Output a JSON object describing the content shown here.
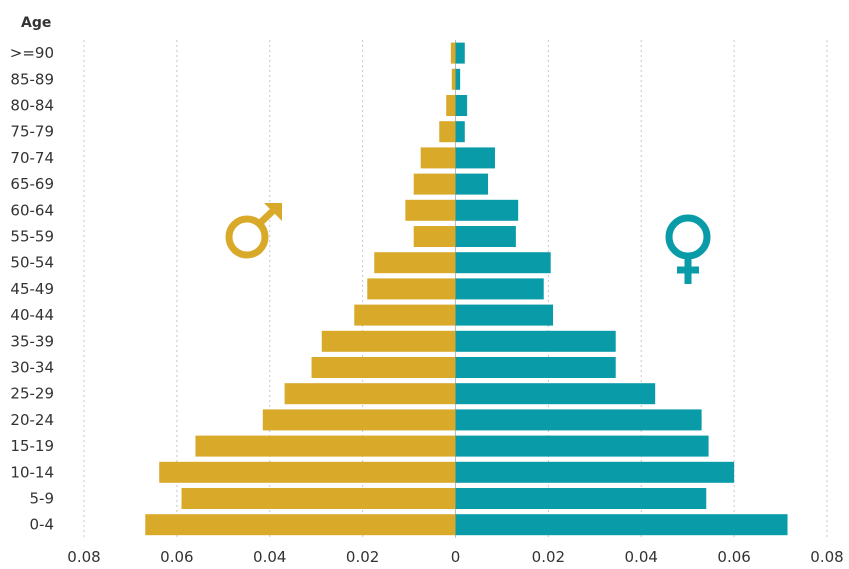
{
  "chart_data": {
    "type": "bar",
    "orientation": "horizontal",
    "layout": "population-pyramid",
    "ylabel": "Age",
    "categories": [
      ">=90",
      "85-89",
      "80-84",
      "75-79",
      "70-74",
      "65-69",
      "60-64",
      "55-59",
      "50-54",
      "45-49",
      "40-44",
      "35-39",
      "30-34",
      "25-29",
      "20-24",
      "15-19",
      "10-14",
      "5-9",
      "0-4"
    ],
    "series": [
      {
        "symbol": "male",
        "side": "left",
        "color": "#D9A92A",
        "values": [
          0.001,
          0.0008,
          0.002,
          0.0035,
          0.0075,
          0.009,
          0.0108,
          0.009,
          0.0175,
          0.019,
          0.0218,
          0.0288,
          0.031,
          0.0368,
          0.0415,
          0.056,
          0.0638,
          0.059,
          0.0668
        ]
      },
      {
        "symbol": "female",
        "side": "right",
        "color": "#0A9BA8",
        "values": [
          0.002,
          0.001,
          0.0025,
          0.002,
          0.0085,
          0.007,
          0.0135,
          0.013,
          0.0205,
          0.019,
          0.021,
          0.0345,
          0.0345,
          0.043,
          0.053,
          0.0545,
          0.06,
          0.054,
          0.0715
        ]
      }
    ],
    "xlim": [
      -0.08,
      0.08
    ],
    "xticks": [
      -0.08,
      -0.06,
      -0.04,
      -0.02,
      0,
      0.02,
      0.04,
      0.06,
      0.08
    ],
    "xtick_labels": [
      "0.08",
      "0.06",
      "0.04",
      "0.02",
      "0",
      "0.02",
      "0.04",
      "0.06",
      "0.08"
    ],
    "grid": "vertical-dotted",
    "icons": [
      "male-symbol-icon",
      "female-symbol-icon"
    ]
  }
}
